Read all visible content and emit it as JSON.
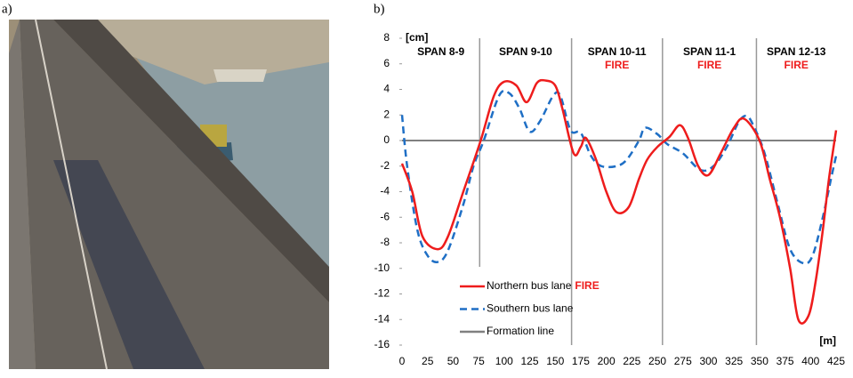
{
  "panels": {
    "a": "a)",
    "b": "b)"
  },
  "chart_data": {
    "type": "line",
    "y_label": "[cm]",
    "x_label": "[m]",
    "xlim": [
      0,
      425
    ],
    "ylim": [
      -16,
      8
    ],
    "xticks": [
      0,
      25,
      50,
      75,
      100,
      125,
      150,
      175,
      200,
      225,
      250,
      275,
      300,
      325,
      350,
      375,
      400,
      425
    ],
    "yticks": [
      -16,
      -14,
      -12,
      -10,
      -8,
      -6,
      -4,
      -2,
      0,
      2,
      4,
      6,
      8
    ],
    "span_lines": [
      76,
      166,
      255,
      347
    ],
    "spans": [
      {
        "label": "SPAN 8-9"
      },
      {
        "label": "SPAN 9-10"
      },
      {
        "label": "SPAN 10-11",
        "note": "FIRE"
      },
      {
        "label": "SPAN 11-1",
        "note": "FIRE"
      },
      {
        "label": "SPAN 12-13",
        "note": "FIRE"
      }
    ],
    "series": [
      {
        "name": "Northern bus lane",
        "name_note": "FIRE",
        "color": "#ee1c1c",
        "dash": false,
        "x": [
          0,
          10,
          20,
          35,
          45,
          60,
          77,
          90,
          100,
          112,
          122,
          132,
          140,
          150,
          157,
          168,
          175,
          180,
          190,
          200,
          210,
          222,
          232,
          240,
          250,
          262,
          272,
          280,
          290,
          300,
          312,
          325,
          335,
          350,
          360,
          370,
          380,
          388,
          398,
          405,
          412,
          418,
          425
        ],
        "values": [
          -1.8,
          -4,
          -7.5,
          -8.5,
          -7.5,
          -4,
          0,
          3.5,
          4.6,
          4.3,
          3.0,
          4.5,
          4.7,
          4.3,
          2.5,
          -1.0,
          -0.5,
          0.2,
          -1.5,
          -4,
          -5.6,
          -5.2,
          -3,
          -1.5,
          -0.5,
          0.3,
          1.2,
          0.2,
          -2,
          -2.7,
          -1,
          1.0,
          1.7,
          0,
          -3,
          -6,
          -10,
          -14,
          -13.7,
          -11,
          -7,
          -3,
          0.8
        ]
      },
      {
        "name": "Southern bus lane",
        "color": "#1f6fc5",
        "dash": true,
        "x": [
          0,
          5,
          15,
          25,
          35,
          45,
          60,
          70,
          80,
          95,
          105,
          115,
          125,
          135,
          148,
          155,
          165,
          175,
          185,
          195,
          210,
          220,
          232,
          238,
          250,
          260,
          275,
          292,
          305,
          318,
          330,
          338,
          345,
          355,
          368,
          380,
          393,
          402,
          412,
          420,
          425
        ],
        "values": [
          2.0,
          -2,
          -7,
          -9,
          -9.5,
          -8.6,
          -5,
          -2,
          0,
          3.5,
          3.7,
          2.5,
          0.7,
          1.5,
          3.5,
          3.5,
          0.8,
          0.6,
          -1.2,
          -2.0,
          -2,
          -1.5,
          0,
          1.0,
          0.5,
          -0.3,
          -1,
          -2.3,
          -2,
          -0.5,
          1.5,
          1.9,
          1.0,
          -1,
          -5,
          -8.5,
          -9.6,
          -9,
          -6,
          -3,
          -1.2
        ]
      },
      {
        "name": "Formation line",
        "color": "#808080",
        "dash": false,
        "x": [
          0,
          425
        ],
        "values": [
          0,
          0
        ]
      }
    ]
  }
}
